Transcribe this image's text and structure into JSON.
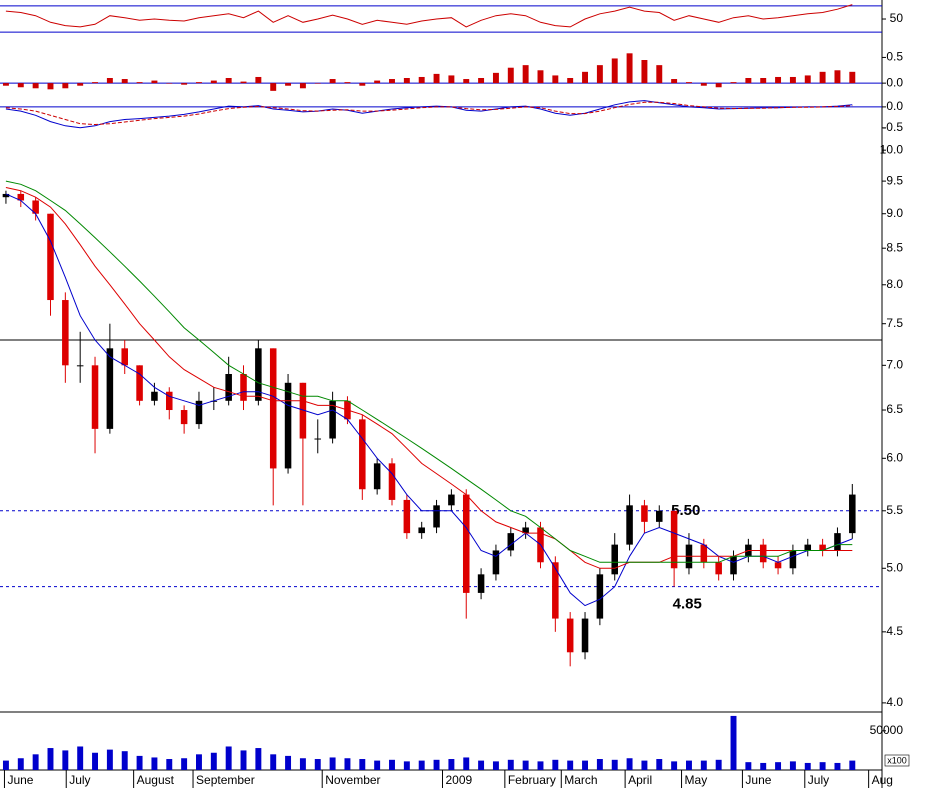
{
  "chart_data": {
    "type": "candlestick",
    "x": [
      0,
      1,
      2,
      3,
      4,
      5,
      6,
      7,
      8,
      9,
      10,
      11,
      12,
      13,
      14,
      15,
      16,
      17,
      18,
      19,
      20,
      21,
      22,
      23,
      24,
      25,
      26,
      27,
      28,
      29,
      30,
      31,
      32,
      33,
      34,
      35,
      36,
      37,
      38,
      39,
      40,
      41,
      42,
      43,
      44,
      45,
      46,
      47,
      48,
      49,
      50,
      51,
      52,
      53,
      54,
      55,
      56,
      57
    ],
    "xlim": [
      -0.4,
      59
    ],
    "xticks": [
      {
        "value": -0.1,
        "label": "June"
      },
      {
        "value": 4.06,
        "label": "July"
      },
      {
        "value": 8.6,
        "label": "August"
      },
      {
        "value": 12.6,
        "label": "September"
      },
      {
        "value": 21.3,
        "label": "November"
      },
      {
        "value": 29.4,
        "label": "2009"
      },
      {
        "value": 33.6,
        "label": "February"
      },
      {
        "value": 37.4,
        "label": "March"
      },
      {
        "value": 41.7,
        "label": "April"
      },
      {
        "value": 45.5,
        "label": "May"
      },
      {
        "value": 49.6,
        "label": "June"
      },
      {
        "value": 53.8,
        "label": "July"
      },
      {
        "value": 58.1,
        "label": "Aug"
      }
    ],
    "panels": [
      {
        "type": "line",
        "ylim": [
          18,
          79
        ],
        "yticks": [
          50
        ],
        "levels": [
          {
            "value": 70,
            "style": "solid",
            "color": "#0000cc"
          },
          {
            "value": 30,
            "style": "solid",
            "color": "#0000cc"
          }
        ],
        "series": [
          {
            "color": "#cc0000",
            "values": [
              62,
              60,
              55,
              45,
              40,
              38,
              42,
              55,
              52,
              48,
              50,
              48,
              47,
              52,
              55,
              58,
              52,
              62,
              45,
              55,
              45,
              50,
              56,
              50,
              42,
              48,
              45,
              42,
              47,
              50,
              52,
              38,
              48,
              55,
              58,
              55,
              45,
              40,
              38,
              50,
              58,
              62,
              68,
              62,
              60,
              48,
              55,
              50,
              45,
              52,
              55,
              50,
              52,
              55,
              58,
              60,
              65,
              72
            ]
          }
        ]
      },
      {
        "type": "bar",
        "ylim": [
          -0.25,
          0.8
        ],
        "yticks": [
          {
            "value": 0,
            "label": "0.0"
          },
          0.5
        ],
        "levels": [
          {
            "value": 0,
            "style": "solid",
            "color": "#0000cc"
          }
        ],
        "color": "#cc0000",
        "values": [
          -0.05,
          -0.08,
          -0.1,
          -0.12,
          -0.1,
          -0.05,
          0.02,
          0.1,
          0.08,
          0.02,
          0.05,
          0.0,
          -0.03,
          0.02,
          0.05,
          0.1,
          0.03,
          0.12,
          -0.15,
          -0.05,
          -0.1,
          0.0,
          0.08,
          0.02,
          -0.05,
          0.05,
          0.08,
          0.1,
          0.12,
          0.18,
          0.15,
          0.08,
          0.1,
          0.2,
          0.3,
          0.35,
          0.25,
          0.15,
          0.1,
          0.22,
          0.35,
          0.48,
          0.58,
          0.45,
          0.35,
          0.08,
          0.02,
          -0.05,
          -0.08,
          0.02,
          0.1,
          0.1,
          0.12,
          0.12,
          0.15,
          0.22,
          0.25,
          0.22
        ]
      },
      {
        "type": "line",
        "ylim": [
          -0.79,
          0.26
        ],
        "yticks": [
          {
            "value": 0,
            "label": "0.0"
          },
          -0.5
        ],
        "levels": [
          {
            "value": 0,
            "style": "solid",
            "color": "#0000cc"
          }
        ],
        "series": [
          {
            "color": "#0000cc",
            "values": [
              -0.05,
              -0.1,
              -0.2,
              -0.35,
              -0.45,
              -0.5,
              -0.45,
              -0.35,
              -0.3,
              -0.28,
              -0.25,
              -0.22,
              -0.18,
              -0.12,
              -0.05,
              0.02,
              0.0,
              0.03,
              -0.05,
              -0.08,
              -0.12,
              -0.1,
              -0.05,
              -0.08,
              -0.15,
              -0.1,
              -0.05,
              -0.02,
              0.0,
              0.02,
              0.0,
              -0.08,
              -0.1,
              -0.05,
              0.0,
              0.02,
              -0.05,
              -0.15,
              -0.2,
              -0.15,
              -0.05,
              0.05,
              0.12,
              0.15,
              0.1,
              0.05,
              0.0,
              -0.02,
              -0.05,
              -0.04,
              -0.03,
              -0.02,
              -0.02,
              -0.01,
              0.0,
              0.0,
              0.02,
              0.05
            ]
          },
          {
            "color": "#cc0000",
            "dashed": true,
            "values": [
              -0.02,
              -0.05,
              -0.1,
              -0.2,
              -0.3,
              -0.4,
              -0.42,
              -0.4,
              -0.36,
              -0.32,
              -0.28,
              -0.25,
              -0.22,
              -0.17,
              -0.1,
              -0.04,
              -0.01,
              0.01,
              -0.02,
              -0.05,
              -0.09,
              -0.1,
              -0.08,
              -0.07,
              -0.1,
              -0.1,
              -0.08,
              -0.05,
              -0.02,
              0.0,
              0.0,
              -0.04,
              -0.07,
              -0.06,
              -0.03,
              0.0,
              -0.02,
              -0.1,
              -0.16,
              -0.16,
              -0.1,
              -0.02,
              0.06,
              0.11,
              0.11,
              0.08,
              0.03,
              0.0,
              -0.03,
              -0.04,
              -0.03,
              -0.03,
              -0.02,
              -0.01,
              -0.01,
              0.0,
              0.01,
              0.03
            ]
          }
        ]
      },
      {
        "type": "candlestick",
        "log_scale": true,
        "ylim": [
          3.94,
          10.17
        ],
        "yticks": [
          {
            "value": 10,
            "label": "10.0"
          },
          9.5,
          {
            "value": 9,
            "label": "9.0"
          },
          8.5,
          {
            "value": 8,
            "label": "8.0"
          },
          7.5,
          {
            "value": 7,
            "label": "7.0"
          },
          6.5,
          {
            "value": 6,
            "label": "6.0"
          },
          5.5,
          {
            "value": 5,
            "label": "5.0"
          },
          4.5,
          {
            "value": 4,
            "label": "4.0"
          }
        ],
        "up_color": "#000000",
        "down_color": "#dd0000",
        "levels": [
          {
            "value": 7.3,
            "style": "solid",
            "color": "#000000"
          },
          {
            "value": 5.5,
            "style": "dashed",
            "color": "#0000cc",
            "label": "5.50",
            "label_x": 44.8,
            "label_side": "above"
          },
          {
            "value": 4.85,
            "style": "dashed",
            "color": "#0000cc",
            "label": "4.85",
            "label_x": 44.9,
            "label_side": "below"
          }
        ],
        "open": [
          9.25,
          9.3,
          9.2,
          9.0,
          7.8,
          7.0,
          7.0,
          6.3,
          7.2,
          7.0,
          6.6,
          6.7,
          6.5,
          6.35,
          6.6,
          6.6,
          6.9,
          6.6,
          7.2,
          5.9,
          6.8,
          6.2,
          6.2,
          6.6,
          6.4,
          5.7,
          5.95,
          5.6,
          5.3,
          5.35,
          5.55,
          5.65,
          4.8,
          4.95,
          5.15,
          5.3,
          5.35,
          5.05,
          4.6,
          4.35,
          4.6,
          4.95,
          5.2,
          5.55,
          5.4,
          5.5,
          5.0,
          5.2,
          5.05,
          4.95,
          5.1,
          5.2,
          5.05,
          5.0,
          5.15,
          5.2,
          5.15,
          5.3
        ],
        "high": [
          9.35,
          9.35,
          9.25,
          9.0,
          7.9,
          7.4,
          7.1,
          7.5,
          7.3,
          7.0,
          6.8,
          6.75,
          6.55,
          6.7,
          6.75,
          7.1,
          7.0,
          7.3,
          7.2,
          6.9,
          6.8,
          6.4,
          6.7,
          6.65,
          6.45,
          6.0,
          6.0,
          5.65,
          5.4,
          5.6,
          5.7,
          5.7,
          5.0,
          5.2,
          5.35,
          5.4,
          5.4,
          5.1,
          4.65,
          4.65,
          5.0,
          5.3,
          5.65,
          5.6,
          5.55,
          5.5,
          5.3,
          5.25,
          5.1,
          5.15,
          5.25,
          5.25,
          5.1,
          5.2,
          5.25,
          5.25,
          5.35,
          5.75
        ],
        "low": [
          9.15,
          9.1,
          8.9,
          7.6,
          6.8,
          6.8,
          6.05,
          6.25,
          6.9,
          6.55,
          6.55,
          6.4,
          6.25,
          6.3,
          6.5,
          6.55,
          6.5,
          6.55,
          5.55,
          5.85,
          5.55,
          6.05,
          6.15,
          6.35,
          5.6,
          5.65,
          5.55,
          5.25,
          5.25,
          5.3,
          5.5,
          4.6,
          4.75,
          4.9,
          5.1,
          5.25,
          5.0,
          4.5,
          4.25,
          4.3,
          4.55,
          4.9,
          5.15,
          5.3,
          5.35,
          4.85,
          4.95,
          5.0,
          4.9,
          4.9,
          5.05,
          5.0,
          4.95,
          4.95,
          5.1,
          5.1,
          5.1,
          5.25
        ],
        "close": [
          9.3,
          9.2,
          9.0,
          7.8,
          7.0,
          7.0,
          6.3,
          7.2,
          7.0,
          6.6,
          6.7,
          6.5,
          6.35,
          6.6,
          6.6,
          6.9,
          6.6,
          7.2,
          5.9,
          6.8,
          6.2,
          6.2,
          6.6,
          6.4,
          5.7,
          5.95,
          5.6,
          5.3,
          5.35,
          5.55,
          5.65,
          4.8,
          4.95,
          5.15,
          5.3,
          5.35,
          5.05,
          4.6,
          4.35,
          4.6,
          4.95,
          5.2,
          5.55,
          5.4,
          5.5,
          5.0,
          5.2,
          5.05,
          4.95,
          5.1,
          5.2,
          5.05,
          5.0,
          5.15,
          5.2,
          5.15,
          5.3,
          5.65
        ],
        "series": [
          {
            "color": "#0000cc",
            "values": [
              9.3,
              9.2,
              9.0,
              8.6,
              8.1,
              7.6,
              7.3,
              7.1,
              7.0,
              6.9,
              6.75,
              6.65,
              6.6,
              6.55,
              6.6,
              6.65,
              6.7,
              6.7,
              6.65,
              6.55,
              6.5,
              6.45,
              6.5,
              6.4,
              6.2,
              6.0,
              5.85,
              5.65,
              5.5,
              5.5,
              5.5,
              5.35,
              5.15,
              5.1,
              5.2,
              5.3,
              5.2,
              5.0,
              4.8,
              4.7,
              4.75,
              4.85,
              5.1,
              5.3,
              5.35,
              5.3,
              5.25,
              5.2,
              5.1,
              5.05,
              5.1,
              5.1,
              5.05,
              5.1,
              5.15,
              5.15,
              5.2,
              5.25
            ]
          },
          {
            "color": "#dd0000",
            "values": [
              9.4,
              9.35,
              9.25,
              9.1,
              8.85,
              8.55,
              8.25,
              8.0,
              7.75,
              7.5,
              7.3,
              7.1,
              6.95,
              6.85,
              6.75,
              6.7,
              6.65,
              6.65,
              6.6,
              6.6,
              6.6,
              6.55,
              6.55,
              6.5,
              6.45,
              6.35,
              6.25,
              6.1,
              5.95,
              5.85,
              5.75,
              5.65,
              5.5,
              5.4,
              5.35,
              5.3,
              5.3,
              5.25,
              5.15,
              5.05,
              5.0,
              5.0,
              5.05,
              5.05,
              5.05,
              5.1,
              5.1,
              5.1,
              5.1,
              5.1,
              5.15,
              5.15,
              5.15,
              5.15,
              5.15,
              5.15,
              5.15,
              5.15
            ]
          },
          {
            "color": "#008800",
            "values": [
              9.5,
              9.45,
              9.35,
              9.2,
              9.05,
              8.85,
              8.65,
              8.45,
              8.25,
              8.05,
              7.85,
              7.65,
              7.45,
              7.3,
              7.15,
              7.0,
              6.9,
              6.8,
              6.75,
              6.7,
              6.65,
              6.65,
              6.6,
              6.6,
              6.5,
              6.4,
              6.3,
              6.2,
              6.1,
              6.0,
              5.9,
              5.8,
              5.7,
              5.6,
              5.5,
              5.45,
              5.35,
              5.25,
              5.15,
              5.1,
              5.05,
              5.05,
              5.05,
              5.05,
              5.05,
              5.05,
              5.05,
              5.05,
              5.05,
              5.1,
              5.1,
              5.1,
              5.1,
              5.15,
              5.15,
              5.15,
              5.2,
              5.2
            ]
          }
        ]
      },
      {
        "type": "bar",
        "ylim": [
          0,
          74000
        ],
        "yticks": [
          50000
        ],
        "unit_label": "x100",
        "color": "#0000cc",
        "values": [
          12000,
          15000,
          20000,
          28000,
          25000,
          30000,
          22000,
          26000,
          24000,
          18000,
          16000,
          14000,
          15000,
          20000,
          22000,
          30000,
          25000,
          28000,
          20000,
          18000,
          15000,
          14000,
          16000,
          15000,
          14000,
          12000,
          13000,
          11000,
          12000,
          13000,
          14000,
          16000,
          12000,
          11000,
          13000,
          12000,
          11000,
          13000,
          12000,
          12000,
          14000,
          13000,
          15000,
          12000,
          14000,
          11000,
          12000,
          12000,
          13000,
          69000,
          10000,
          9000,
          10000,
          11000,
          9000,
          10000,
          9000,
          12000
        ]
      }
    ]
  }
}
